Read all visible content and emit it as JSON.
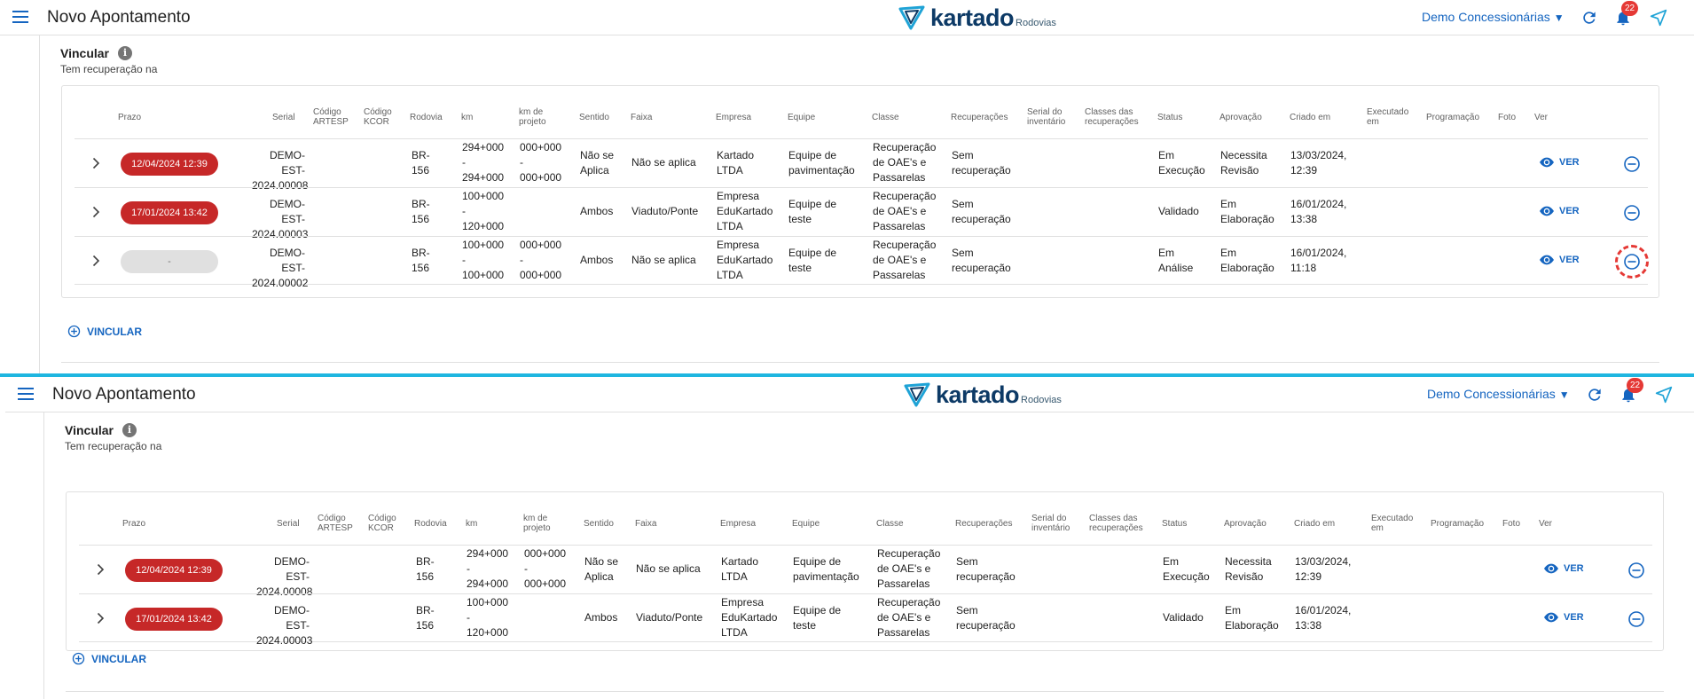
{
  "app": {
    "title": "Novo Apontamento",
    "brand": "kartado",
    "brand_sub": "Rodovias",
    "org": "Demo Concessionárias",
    "org_arrow": "▼",
    "notifications": "22"
  },
  "section": {
    "title": "Vincular",
    "info": "i",
    "subtitle": "Tem recuperação na"
  },
  "columns": {
    "prazo": "Prazo",
    "serial": "Serial",
    "codigo_artesp_1": "Código",
    "codigo_artesp_2": "ARTESP",
    "codigo_kcor_1": "Código",
    "codigo_kcor_2": "KCOR",
    "rodovia": "Rodovia",
    "km": "km",
    "km_projeto_1": "km de",
    "km_projeto_2": "projeto",
    "sentido": "Sentido",
    "faixa": "Faixa",
    "empresa": "Empresa",
    "equipe": "Equipe",
    "classe": "Classe",
    "recuperacoes": "Recuperações",
    "serial_inv_1": "Serial do",
    "serial_inv_2": "inventário",
    "classes_rec_1": "Classes das",
    "classes_rec_2": "recuperações",
    "status": "Status",
    "aprovacao": "Aprovação",
    "criado": "Criado em",
    "executado_1": "Executado",
    "executado_2": "em",
    "programacao": "Programação",
    "foto": "Foto",
    "ver": "Ver"
  },
  "rows": [
    {
      "prazo": "12/04/2024 12:39",
      "serial_1": "DEMO-EST-",
      "serial_2": "2024.00008",
      "rodovia_1": "BR-",
      "rodovia_2": "156",
      "km_1": "294+000",
      "km_2": "-",
      "km_3": "294+000",
      "kmp_1": "000+000",
      "kmp_2": "-",
      "kmp_3": "000+000",
      "sentido_1": "Não se",
      "sentido_2": "Aplica",
      "faixa": "Não se aplica",
      "empresa_1": "Kartado",
      "empresa_2": "LTDA",
      "empresa_3": "",
      "equipe_1": "Equipe de",
      "equipe_2": "pavimentação",
      "classe_1": "Recuperação",
      "classe_2": "de OAE's e",
      "classe_3": "Passarelas",
      "rec_1": "Sem",
      "rec_2": "recuperação",
      "status_1": "Em",
      "status_2": "Execução",
      "aprov_1": "Necessita",
      "aprov_2": "Revisão",
      "criado_1": "13/03/2024,",
      "criado_2": "12:39",
      "ver": "VER"
    },
    {
      "prazo": "17/01/2024 13:42",
      "serial_1": "DEMO-EST-",
      "serial_2": "2024.00003",
      "rodovia_1": "BR-",
      "rodovia_2": "156",
      "km_1": "100+000",
      "km_2": "-",
      "km_3": "120+000",
      "kmp_1": "",
      "kmp_2": "",
      "kmp_3": "",
      "sentido_1": "Ambos",
      "sentido_2": "",
      "faixa": "Viaduto/Ponte",
      "empresa_1": "Empresa",
      "empresa_2": "EduKartado",
      "empresa_3": "LTDA",
      "equipe_1": "Equipe de",
      "equipe_2": "teste",
      "classe_1": "Recuperação",
      "classe_2": "de OAE's e",
      "classe_3": "Passarelas",
      "rec_1": "Sem",
      "rec_2": "recuperação",
      "status_1": "Validado",
      "status_2": "",
      "aprov_1": "Em",
      "aprov_2": "Elaboração",
      "criado_1": "16/01/2024,",
      "criado_2": "13:38",
      "ver": "VER"
    },
    {
      "prazo": "-",
      "serial_1": "DEMO-EST-",
      "serial_2": "2024.00002",
      "rodovia_1": "BR-",
      "rodovia_2": "156",
      "km_1": "100+000",
      "km_2": "-",
      "km_3": "100+000",
      "kmp_1": "000+000",
      "kmp_2": "-",
      "kmp_3": "000+000",
      "sentido_1": "Ambos",
      "sentido_2": "",
      "faixa": "Não se aplica",
      "empresa_1": "Empresa",
      "empresa_2": "EduKartado",
      "empresa_3": "LTDA",
      "equipe_1": "Equipe de",
      "equipe_2": "teste",
      "classe_1": "Recuperação",
      "classe_2": "de OAE's e",
      "classe_3": "Passarelas",
      "rec_1": "Sem",
      "rec_2": "recuperação",
      "status_1": "Em",
      "status_2": "Análise",
      "aprov_1": "Em",
      "aprov_2": "Elaboração",
      "criado_1": "16/01/2024,",
      "criado_2": "11:18",
      "ver": "VER"
    }
  ],
  "actions": {
    "vincular": "VINCULAR"
  },
  "colors": {
    "accent": "#1565c0",
    "danger": "#c62828",
    "divider": "#1fb6e0"
  }
}
